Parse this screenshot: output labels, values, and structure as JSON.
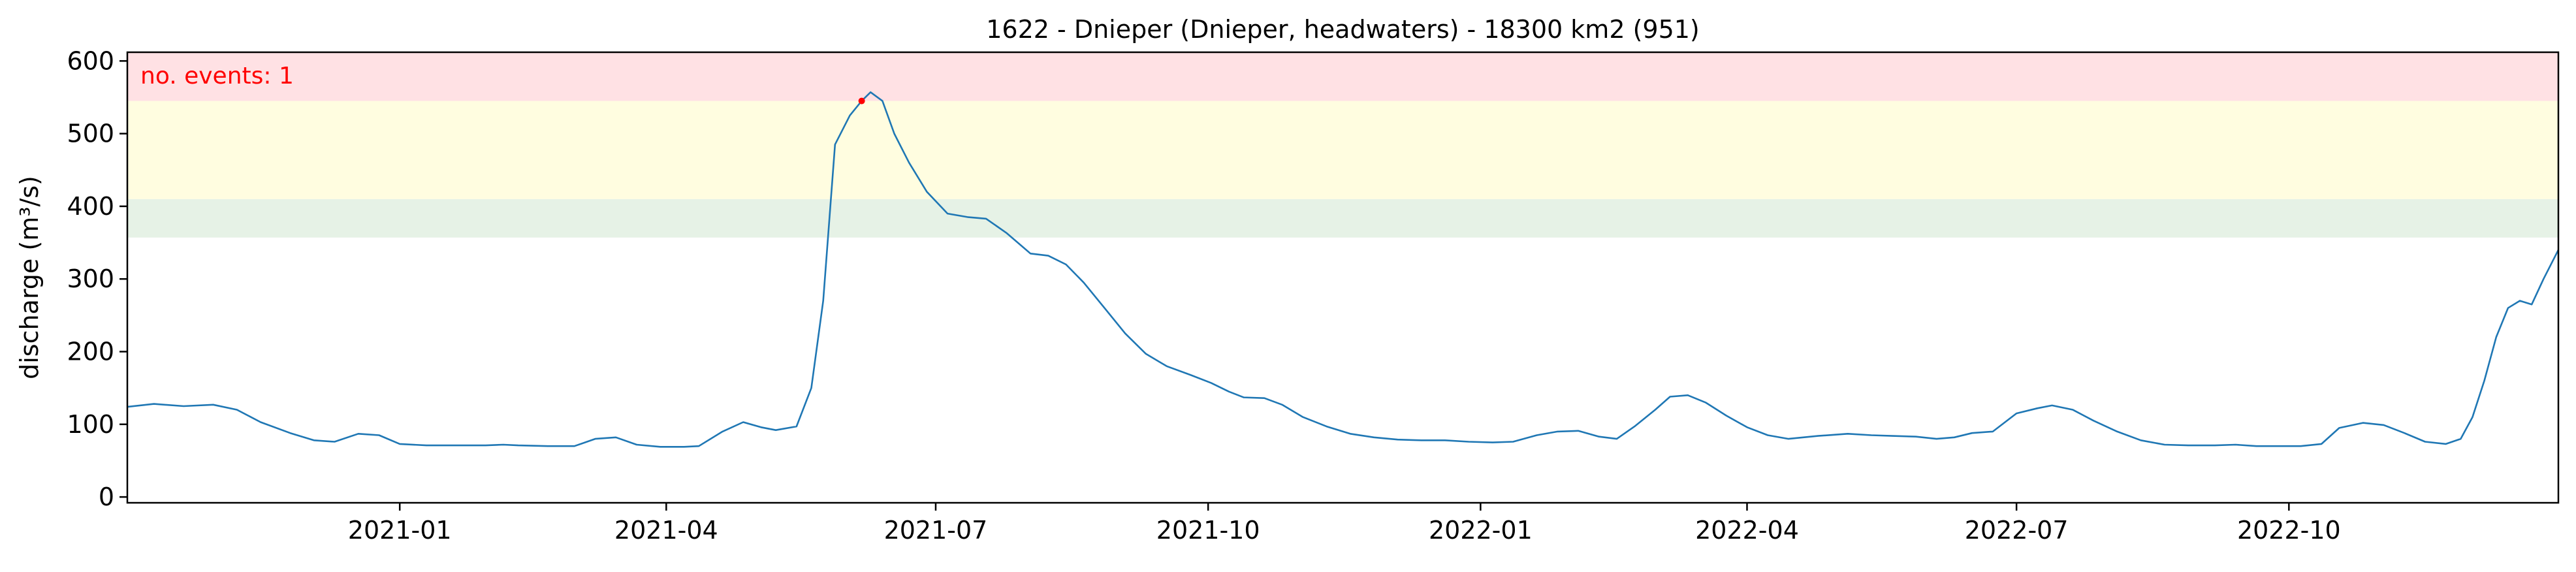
{
  "chart_data": {
    "type": "line",
    "title": "1622 - Dnieper (Dnieper, headwaters) - 18300 km2 (951)",
    "xlabel": "",
    "ylabel": "discharge (m³/s)",
    "ylim": [
      -8,
      612
    ],
    "y_ticks": [
      0,
      100,
      200,
      300,
      400,
      500,
      600
    ],
    "xlim": [
      "2020-10-01",
      "2022-12-31"
    ],
    "x_ticks": [
      "2021-01",
      "2021-04",
      "2021-07",
      "2021-10",
      "2022-01",
      "2022-04",
      "2022-07",
      "2022-10"
    ],
    "grid": false,
    "bands": [
      {
        "from": 357,
        "to": 410,
        "color": "#e6f2e6"
      },
      {
        "from": 410,
        "to": 545,
        "color": "#fffde0"
      },
      {
        "from": 545,
        "to": 612,
        "color": "#ffe1e4"
      }
    ],
    "annotation": "no. events: 1",
    "series": [
      {
        "color": "#1f77b4",
        "points": [
          [
            "2020-10-01",
            124
          ],
          [
            "2020-10-10",
            128
          ],
          [
            "2020-10-20",
            125
          ],
          [
            "2020-10-30",
            127
          ],
          [
            "2020-11-07",
            120
          ],
          [
            "2020-11-15",
            103
          ],
          [
            "2020-11-25",
            88
          ],
          [
            "2020-12-03",
            78
          ],
          [
            "2020-12-10",
            76
          ],
          [
            "2020-12-18",
            87
          ],
          [
            "2020-12-25",
            85
          ],
          [
            "2021-01-01",
            73
          ],
          [
            "2021-01-10",
            71
          ],
          [
            "2021-01-20",
            71
          ],
          [
            "2021-01-30",
            71
          ],
          [
            "2021-02-05",
            72
          ],
          [
            "2021-02-10",
            71
          ],
          [
            "2021-02-20",
            70
          ],
          [
            "2021-03-01",
            70
          ],
          [
            "2021-03-08",
            80
          ],
          [
            "2021-03-15",
            82
          ],
          [
            "2021-03-22",
            72
          ],
          [
            "2021-03-30",
            69
          ],
          [
            "2021-04-07",
            69
          ],
          [
            "2021-04-12",
            70
          ],
          [
            "2021-04-20",
            90
          ],
          [
            "2021-04-27",
            103
          ],
          [
            "2021-05-03",
            96
          ],
          [
            "2021-05-08",
            92
          ],
          [
            "2021-05-15",
            97
          ],
          [
            "2021-05-20",
            150
          ],
          [
            "2021-05-24",
            270
          ],
          [
            "2021-05-28",
            485
          ],
          [
            "2021-06-02",
            525
          ],
          [
            "2021-06-06",
            545
          ],
          [
            "2021-06-09",
            557
          ],
          [
            "2021-06-13",
            545
          ],
          [
            "2021-06-17",
            500
          ],
          [
            "2021-06-22",
            460
          ],
          [
            "2021-06-28",
            420
          ],
          [
            "2021-07-05",
            390
          ],
          [
            "2021-07-12",
            385
          ],
          [
            "2021-07-18",
            383
          ],
          [
            "2021-07-25",
            363
          ],
          [
            "2021-08-02",
            335
          ],
          [
            "2021-08-08",
            332
          ],
          [
            "2021-08-14",
            320
          ],
          [
            "2021-08-20",
            295
          ],
          [
            "2021-08-27",
            260
          ],
          [
            "2021-09-03",
            225
          ],
          [
            "2021-09-10",
            197
          ],
          [
            "2021-09-17",
            180
          ],
          [
            "2021-09-25",
            168
          ],
          [
            "2021-10-02",
            157
          ],
          [
            "2021-10-08",
            145
          ],
          [
            "2021-10-13",
            137
          ],
          [
            "2021-10-20",
            136
          ],
          [
            "2021-10-26",
            127
          ],
          [
            "2021-11-02",
            110
          ],
          [
            "2021-11-10",
            97
          ],
          [
            "2021-11-18",
            87
          ],
          [
            "2021-11-26",
            82
          ],
          [
            "2021-12-04",
            79
          ],
          [
            "2021-12-12",
            78
          ],
          [
            "2021-12-20",
            78
          ],
          [
            "2021-12-28",
            76
          ],
          [
            "2022-01-05",
            75
          ],
          [
            "2022-01-12",
            76
          ],
          [
            "2022-01-20",
            85
          ],
          [
            "2022-01-27",
            90
          ],
          [
            "2022-02-03",
            91
          ],
          [
            "2022-02-10",
            83
          ],
          [
            "2022-02-16",
            80
          ],
          [
            "2022-02-22",
            97
          ],
          [
            "2022-03-01",
            120
          ],
          [
            "2022-03-06",
            138
          ],
          [
            "2022-03-12",
            140
          ],
          [
            "2022-03-18",
            130
          ],
          [
            "2022-03-25",
            112
          ],
          [
            "2022-04-01",
            96
          ],
          [
            "2022-04-08",
            85
          ],
          [
            "2022-04-15",
            80
          ],
          [
            "2022-04-25",
            84
          ],
          [
            "2022-05-05",
            87
          ],
          [
            "2022-05-13",
            85
          ],
          [
            "2022-05-20",
            84
          ],
          [
            "2022-05-28",
            83
          ],
          [
            "2022-06-04",
            80
          ],
          [
            "2022-06-10",
            82
          ],
          [
            "2022-06-16",
            88
          ],
          [
            "2022-06-23",
            90
          ],
          [
            "2022-07-01",
            115
          ],
          [
            "2022-07-08",
            122
          ],
          [
            "2022-07-13",
            126
          ],
          [
            "2022-07-20",
            120
          ],
          [
            "2022-07-27",
            105
          ],
          [
            "2022-08-04",
            90
          ],
          [
            "2022-08-12",
            78
          ],
          [
            "2022-08-20",
            72
          ],
          [
            "2022-08-28",
            71
          ],
          [
            "2022-09-06",
            71
          ],
          [
            "2022-09-13",
            72
          ],
          [
            "2022-09-20",
            70
          ],
          [
            "2022-09-28",
            70
          ],
          [
            "2022-10-05",
            70
          ],
          [
            "2022-10-12",
            73
          ],
          [
            "2022-10-18",
            95
          ],
          [
            "2022-10-26",
            102
          ],
          [
            "2022-11-02",
            99
          ],
          [
            "2022-11-09",
            88
          ],
          [
            "2022-11-16",
            76
          ],
          [
            "2022-11-23",
            73
          ],
          [
            "2022-11-28",
            80
          ],
          [
            "2022-12-02",
            110
          ],
          [
            "2022-12-06",
            160
          ],
          [
            "2022-12-10",
            220
          ],
          [
            "2022-12-14",
            260
          ],
          [
            "2022-12-18",
            270
          ],
          [
            "2022-12-22",
            265
          ],
          [
            "2022-12-26",
            300
          ],
          [
            "2022-12-31",
            340
          ]
        ]
      }
    ],
    "event_marker": {
      "x": "2021-06-06",
      "y": 545,
      "color": "#ff0000"
    }
  }
}
